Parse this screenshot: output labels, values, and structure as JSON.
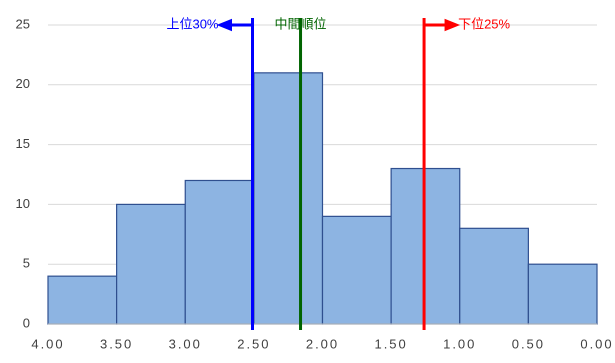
{
  "chart_data": {
    "type": "histogram",
    "bins": [
      4,
      3.5,
      3,
      2.5,
      2,
      1.5,
      1,
      0.5,
      0
    ],
    "counts": [
      4,
      10,
      12,
      21,
      9,
      13,
      8,
      5
    ],
    "color": "#8db4e2",
    "edge_color": "#2f4f8f",
    "xlim": [
      4,
      0
    ],
    "xticks": [
      {
        "value": 4,
        "label": "4.00"
      },
      {
        "value": 3.5,
        "label": "3.50"
      },
      {
        "value": 3,
        "label": "3.00"
      },
      {
        "value": 2.5,
        "label": "2.50"
      },
      {
        "value": 2,
        "label": "2.00"
      },
      {
        "value": 1.5,
        "label": "1.50"
      },
      {
        "value": 1,
        "label": "1.00"
      },
      {
        "value": 0.5,
        "label": "0.50"
      },
      {
        "value": 0,
        "label": "0.00"
      }
    ],
    "ylim": [
      0,
      25
    ],
    "yticks": [
      0,
      5,
      10,
      15,
      20,
      25
    ],
    "grid": true,
    "markers": [
      {
        "label": "上位30%",
        "value": 2.51,
        "color": "#0000ff",
        "arrow": "left"
      },
      {
        "label": "中間順位",
        "value": 2.16,
        "color": "#006400"
      },
      {
        "label": "下位25%",
        "value": 1.26,
        "color": "#ff0000",
        "arrow": "right"
      }
    ]
  }
}
